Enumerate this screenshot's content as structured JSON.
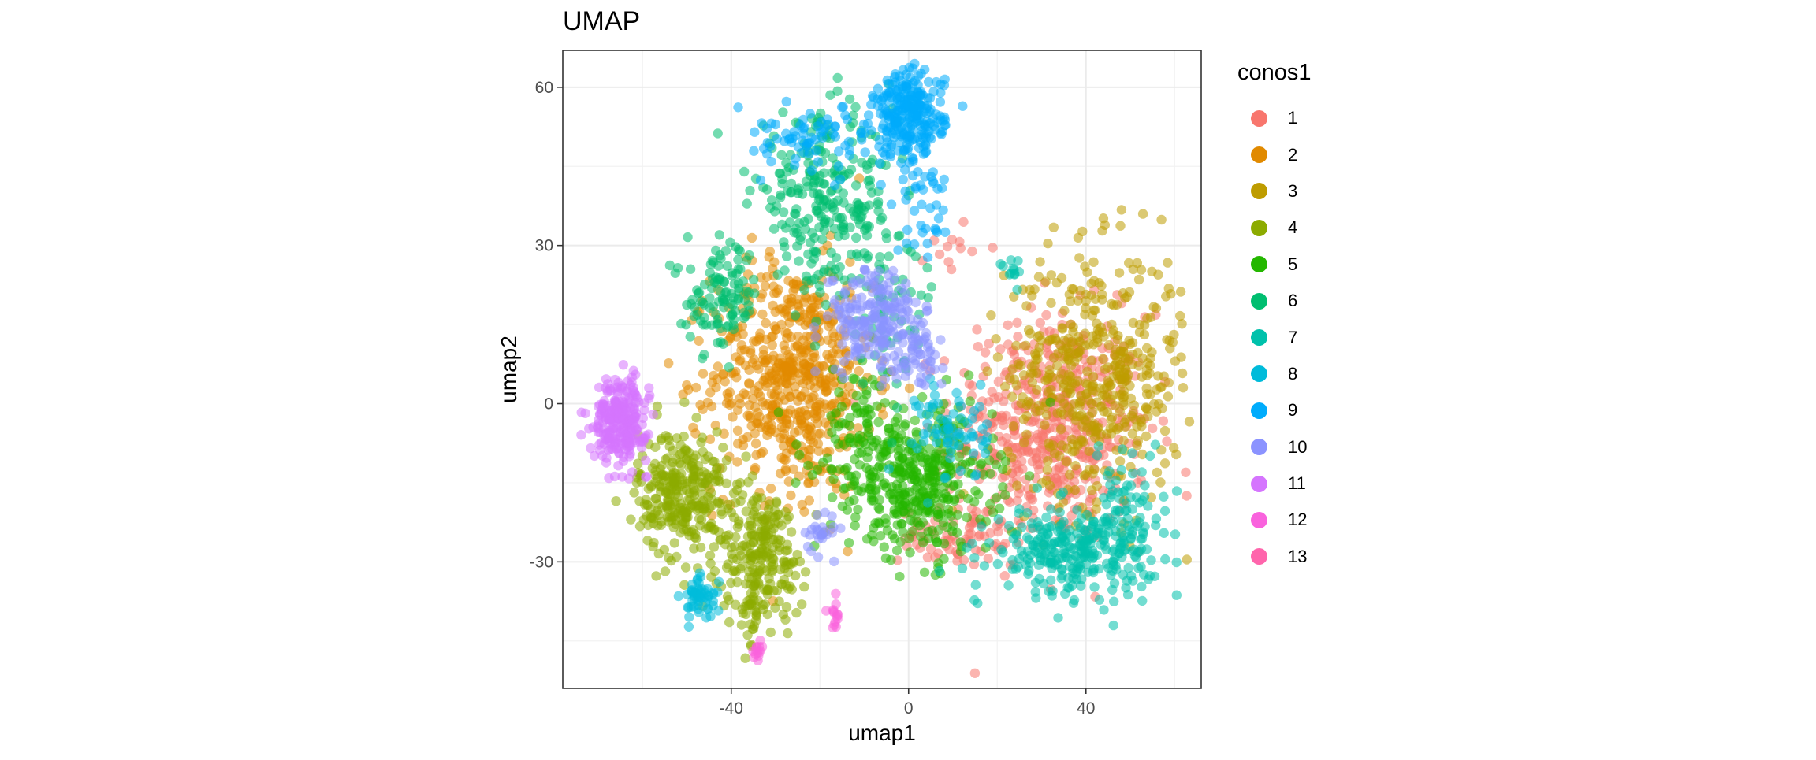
{
  "chart_data": {
    "type": "scatter",
    "title": "UMAP",
    "xlabel": "umap1",
    "ylabel": "umap2",
    "xlim": [
      -78,
      66
    ],
    "ylim": [
      -54,
      67
    ],
    "x_ticks": [
      -40,
      0,
      40
    ],
    "x_tick_labels": [
      "-40",
      "0",
      "40"
    ],
    "y_ticks": [
      -30,
      0,
      30,
      60
    ],
    "y_tick_labels": [
      "-30",
      "0",
      "30",
      "60"
    ],
    "grid": true,
    "legend": {
      "title": "conos1",
      "position": "right"
    },
    "series": [
      {
        "name": "1",
        "color": "#F8766D",
        "clusters": [
          {
            "cx": 32,
            "cy": -5,
            "sx": 11,
            "sy": 11,
            "n": 520
          },
          {
            "cx": 10,
            "cy": -25,
            "sx": 6,
            "sy": 2.5,
            "n": 70
          },
          {
            "cx": 10,
            "cy": 30,
            "sx": 3,
            "sy": 3,
            "n": 12
          }
        ]
      },
      {
        "name": "2",
        "color": "#E18A00",
        "clusters": [
          {
            "cx": -26,
            "cy": 5,
            "sx": 9,
            "sy": 11,
            "n": 620
          }
        ]
      },
      {
        "name": "3",
        "color": "#BE9C00",
        "clusters": [
          {
            "cx": 42,
            "cy": 5,
            "sx": 10,
            "sy": 12,
            "n": 480
          }
        ]
      },
      {
        "name": "4",
        "color": "#8CAB00",
        "clusters": [
          {
            "cx": -51,
            "cy": -17,
            "sx": 5,
            "sy": 6,
            "n": 300
          },
          {
            "cx": -33,
            "cy": -28,
            "sx": 5,
            "sy": 6,
            "n": 220
          },
          {
            "cx": -35,
            "cy": -40,
            "sx": 1.5,
            "sy": 4,
            "n": 30
          }
        ]
      },
      {
        "name": "5",
        "color": "#24B700",
        "clusters": [
          {
            "cx": 3,
            "cy": -15,
            "sx": 8,
            "sy": 7,
            "n": 360
          },
          {
            "cx": -10,
            "cy": -8,
            "sx": 7,
            "sy": 8,
            "n": 120
          }
        ]
      },
      {
        "name": "6",
        "color": "#00BE70",
        "clusters": [
          {
            "cx": -19,
            "cy": 38,
            "sx": 8,
            "sy": 8,
            "n": 260
          },
          {
            "cx": -42,
            "cy": 20,
            "sx": 4,
            "sy": 5,
            "n": 110
          },
          {
            "cx": -5,
            "cy": 20,
            "sx": 6,
            "sy": 8,
            "n": 60
          }
        ]
      },
      {
        "name": "7",
        "color": "#00C1AB",
        "clusters": [
          {
            "cx": 37,
            "cy": -28,
            "sx": 9,
            "sy": 4,
            "n": 300
          },
          {
            "cx": 50,
            "cy": -18,
            "sx": 4,
            "sy": 6,
            "n": 60
          },
          {
            "cx": 24,
            "cy": 25,
            "sx": 1.5,
            "sy": 1.5,
            "n": 12
          }
        ]
      },
      {
        "name": "8",
        "color": "#00BBDA",
        "clusters": [
          {
            "cx": -47,
            "cy": -37,
            "sx": 2,
            "sy": 2,
            "n": 55
          },
          {
            "cx": 10,
            "cy": -5,
            "sx": 4,
            "sy": 5,
            "n": 70
          }
        ]
      },
      {
        "name": "9",
        "color": "#00ACFC",
        "clusters": [
          {
            "cx": 0,
            "cy": 55,
            "sx": 4,
            "sy": 4,
            "n": 250
          },
          {
            "cx": -22,
            "cy": 50,
            "sx": 9,
            "sy": 3,
            "n": 80
          },
          {
            "cx": 3,
            "cy": 40,
            "sx": 3,
            "sy": 6,
            "n": 50
          }
        ]
      },
      {
        "name": "10",
        "color": "#8B93FF",
        "clusters": [
          {
            "cx": -8,
            "cy": 16,
            "sx": 5,
            "sy": 5,
            "n": 200
          },
          {
            "cx": 2,
            "cy": 10,
            "sx": 3,
            "sy": 3,
            "n": 60
          },
          {
            "cx": -20,
            "cy": -24,
            "sx": 2,
            "sy": 2,
            "n": 25
          }
        ]
      },
      {
        "name": "11",
        "color": "#D575FE",
        "clusters": [
          {
            "cx": -65,
            "cy": -3,
            "sx": 3,
            "sy": 4,
            "n": 260
          }
        ]
      },
      {
        "name": "12",
        "color": "#F962DD",
        "clusters": [
          {
            "cx": -34,
            "cy": -47,
            "sx": 0.7,
            "sy": 1,
            "n": 14
          },
          {
            "cx": -17,
            "cy": -41,
            "sx": 0.8,
            "sy": 1.5,
            "n": 14
          }
        ]
      },
      {
        "name": "13",
        "color": "#FF65AC",
        "clusters": []
      }
    ]
  }
}
